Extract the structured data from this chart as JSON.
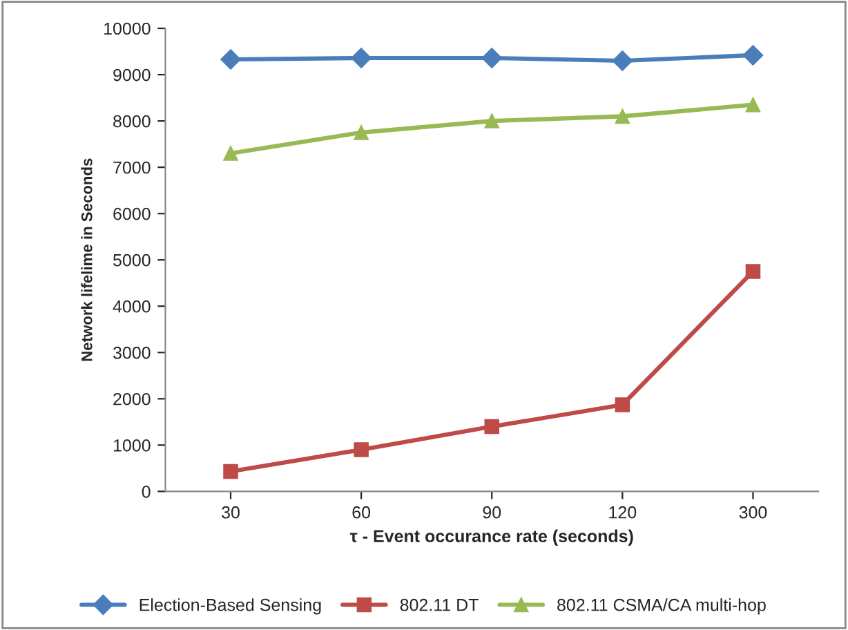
{
  "chart_data": {
    "type": "line",
    "xlabel": "τ - Event occurance rate (seconds)",
    "ylabel": "Network lifelime in Seconds",
    "categories": [
      "30",
      "60",
      "90",
      "120",
      "300"
    ],
    "series": [
      {
        "name": "Election-Based Sensing",
        "color": "#4a7ebb",
        "marker": "diamond",
        "values": [
          9330,
          9360,
          9360,
          9300,
          9420
        ]
      },
      {
        "name": "802.11 DT",
        "color": "#be4b48",
        "marker": "square",
        "values": [
          430,
          900,
          1400,
          1870,
          4750
        ]
      },
      {
        "name": "802.11 CSMA/CA multi-hop",
        "color": "#98b954",
        "marker": "triangle",
        "values": [
          7300,
          7750,
          8000,
          8100,
          8350
        ]
      }
    ],
    "ylim": [
      0,
      10000
    ],
    "yticks": [
      0,
      1000,
      2000,
      3000,
      4000,
      5000,
      6000,
      7000,
      8000,
      9000,
      10000
    ],
    "grid": false,
    "legend": "bottom"
  }
}
